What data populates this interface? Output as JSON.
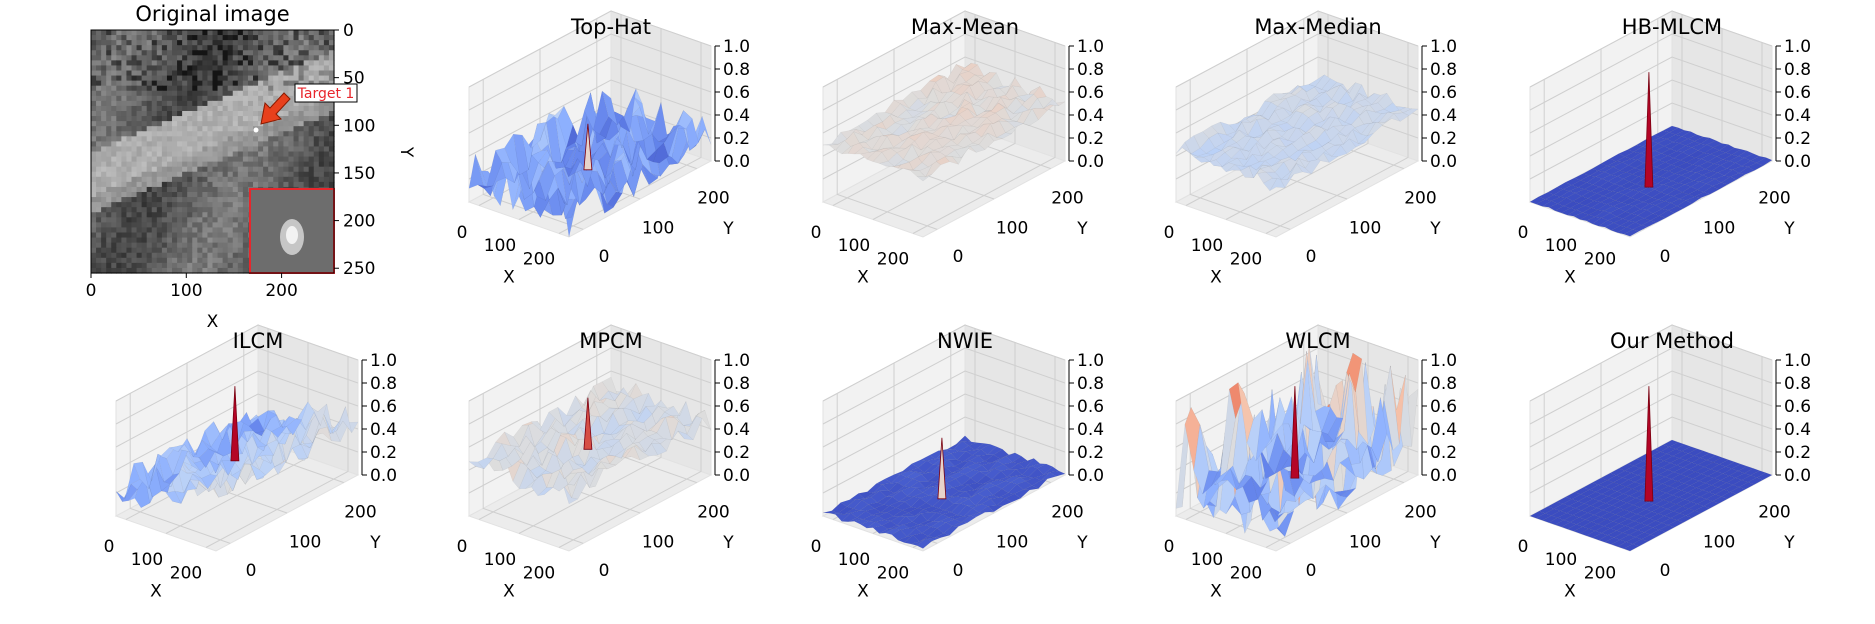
{
  "chart_data": [
    {
      "type": "heatmap",
      "title": "Original image",
      "xlabel": "X",
      "ylabel": "Y",
      "xlim": [
        0,
        255
      ],
      "ylim": [
        0,
        255
      ],
      "xticks": [
        "0",
        "100",
        "200"
      ],
      "yticks": [
        "0",
        "50",
        "100",
        "150",
        "200",
        "250"
      ],
      "annotation": "Target 1",
      "colormap": "gray"
    },
    {
      "type": "surface",
      "title": "Top-Hat",
      "xlabel": "X",
      "ylabel": "Y",
      "xticks": [
        "0",
        "100",
        "200"
      ],
      "yticks": [
        "0",
        "100",
        "200"
      ],
      "zticks": [
        "0.0",
        "0.2",
        "0.4",
        "0.6",
        "0.8",
        "1.0"
      ],
      "zlim": [
        0,
        1
      ],
      "colormap": "coolwarm",
      "base_level": 0.15,
      "noise_amplitude": 0.45,
      "peak": 0.55
    },
    {
      "type": "surface",
      "title": "Max-Mean",
      "xlabel": "X",
      "ylabel": "Y",
      "xticks": [
        "0",
        "100",
        "200"
      ],
      "yticks": [
        "0",
        "100",
        "200"
      ],
      "zticks": [
        "0.0",
        "0.2",
        "0.4",
        "0.6",
        "0.8",
        "1.0"
      ],
      "zlim": [
        0,
        1
      ],
      "colormap": "coolwarm",
      "base_level": 0.5,
      "noise_amplitude": 0.12,
      "peak": 0.55
    },
    {
      "type": "surface",
      "title": "Max-Median",
      "xlabel": "X",
      "ylabel": "Y",
      "xticks": [
        "0",
        "100",
        "200"
      ],
      "yticks": [
        "0",
        "100",
        "200"
      ],
      "zticks": [
        "0.0",
        "0.2",
        "0.4",
        "0.6",
        "0.8",
        "1.0"
      ],
      "zlim": [
        0,
        1
      ],
      "colormap": "coolwarm",
      "base_level": 0.42,
      "noise_amplitude": 0.12,
      "peak": 0.6
    },
    {
      "type": "surface",
      "title": "HB-MLCM",
      "xlabel": "X",
      "ylabel": "Y",
      "xticks": [
        "0",
        "100",
        "200"
      ],
      "yticks": [
        "0",
        "100",
        "200"
      ],
      "zticks": [
        "0.0",
        "0.2",
        "0.4",
        "0.6",
        "0.8",
        "1.0"
      ],
      "zlim": [
        0,
        1
      ],
      "colormap": "coolwarm",
      "base_level": 0.0,
      "noise_amplitude": 0.02,
      "peak": 1.0
    },
    {
      "type": "surface",
      "title": "ILCM",
      "xlabel": "X",
      "ylabel": "Y",
      "xticks": [
        "0",
        "100",
        "200"
      ],
      "yticks": [
        "0",
        "100",
        "200"
      ],
      "zticks": [
        "0.0",
        "0.2",
        "0.4",
        "0.6",
        "0.8",
        "1.0"
      ],
      "zlim": [
        0,
        1
      ],
      "colormap": "coolwarm",
      "base_level": 0.35,
      "noise_amplitude": 0.35,
      "peak": 1.0
    },
    {
      "type": "surface",
      "title": "MPCM",
      "xlabel": "X",
      "ylabel": "Y",
      "xticks": [
        "0",
        "100",
        "200"
      ],
      "yticks": [
        "0",
        "100",
        "200"
      ],
      "zticks": [
        "0.0",
        "0.2",
        "0.4",
        "0.6",
        "0.8",
        "1.0"
      ],
      "zlim": [
        0,
        1
      ],
      "colormap": "coolwarm",
      "base_level": 0.45,
      "noise_amplitude": 0.2,
      "peak": 0.9
    },
    {
      "type": "surface",
      "title": "NWIE",
      "xlabel": "X",
      "ylabel": "Y",
      "xticks": [
        "0",
        "100",
        "200"
      ],
      "yticks": [
        "0",
        "100",
        "200"
      ],
      "zticks": [
        "0.0",
        "0.2",
        "0.4",
        "0.6",
        "0.8",
        "1.0"
      ],
      "zlim": [
        0,
        1
      ],
      "colormap": "coolwarm",
      "base_level": 0.02,
      "noise_amplitude": 0.05,
      "peak": 0.55
    },
    {
      "type": "surface",
      "title": "WLCM",
      "xlabel": "X",
      "ylabel": "Y",
      "xticks": [
        "0",
        "100",
        "200"
      ],
      "yticks": [
        "0",
        "100",
        "200"
      ],
      "zticks": [
        "0.0",
        "0.2",
        "0.4",
        "0.6",
        "0.8",
        "1.0"
      ],
      "zlim": [
        0,
        1
      ],
      "colormap": "coolwarm",
      "base_level": 0.2,
      "noise_amplitude": 0.7,
      "peak": 1.0
    },
    {
      "type": "surface",
      "title": "Our Method",
      "xlabel": "X",
      "ylabel": "Y",
      "xticks": [
        "0",
        "100",
        "200"
      ],
      "yticks": [
        "0",
        "100",
        "200"
      ],
      "zticks": [
        "0.0",
        "0.2",
        "0.4",
        "0.6",
        "0.8",
        "1.0"
      ],
      "zlim": [
        0,
        1
      ],
      "colormap": "coolwarm",
      "base_level": 0.0,
      "noise_amplitude": 0.0,
      "peak": 1.0
    }
  ]
}
